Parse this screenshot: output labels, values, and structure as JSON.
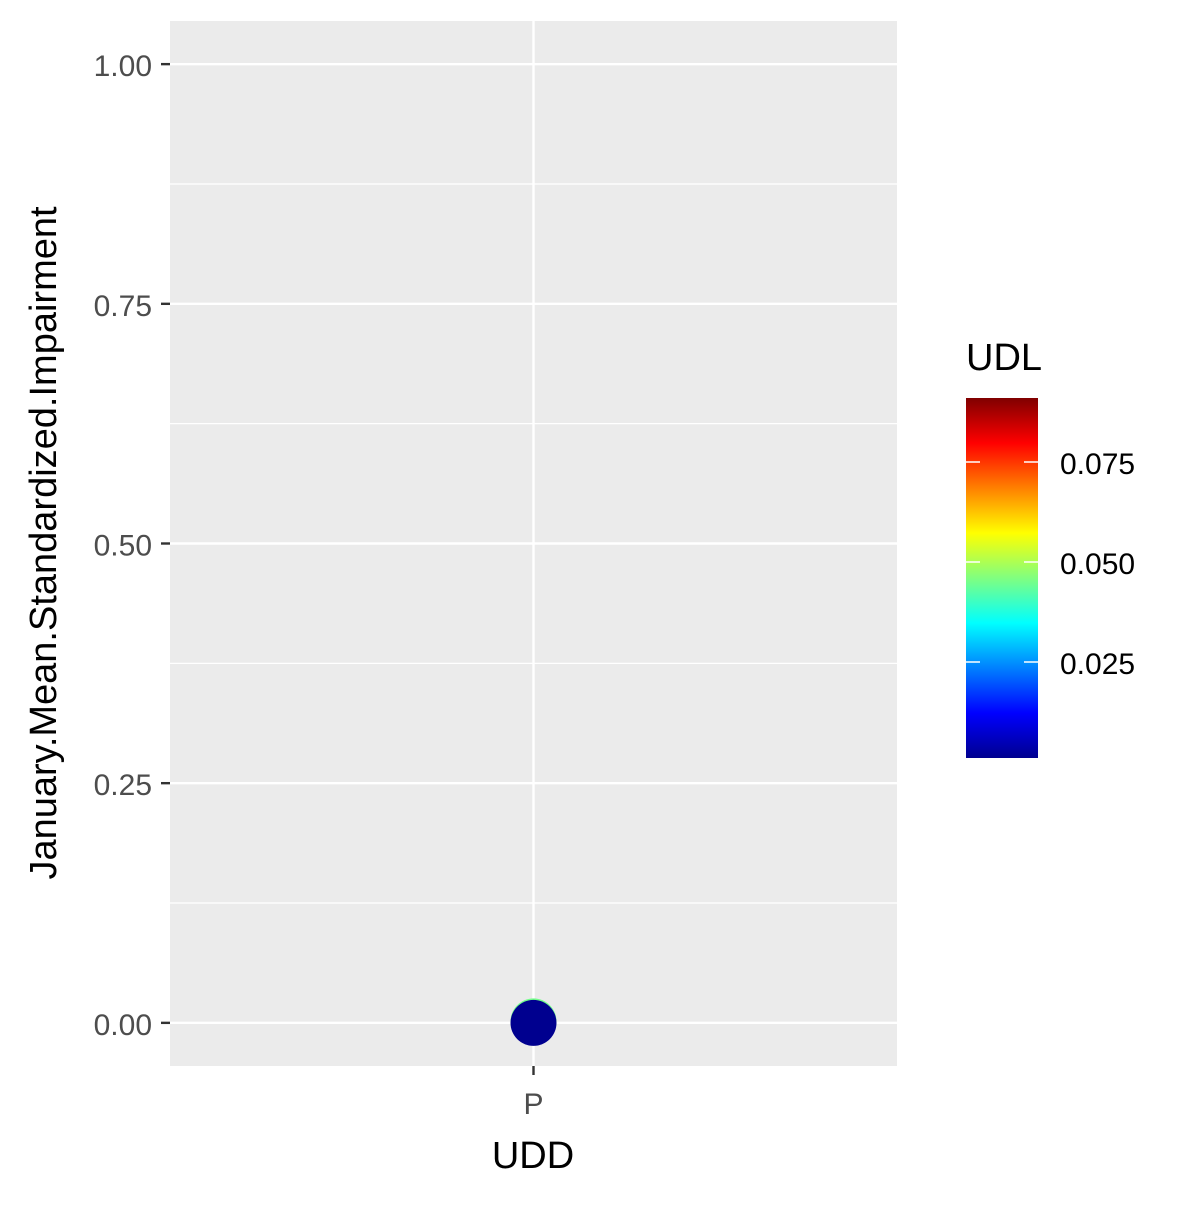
{
  "chart_data": {
    "type": "scatter",
    "xlabel": "UDD",
    "ylabel": "January.Mean.Standardized.Impairment",
    "categories": [
      "P"
    ],
    "ylim": [
      -0.045,
      1.045
    ],
    "y_ticks": [
      0,
      0.25,
      0.5,
      0.75,
      1
    ],
    "y_tick_labels": [
      "0.00",
      "0.25",
      "0.50",
      "0.75",
      "1.00"
    ],
    "grid": true,
    "points": [
      {
        "x": "P",
        "y": 0.0,
        "udl": 0.045
      },
      {
        "x": "P",
        "y": 0.0,
        "udl": 0.001
      }
    ],
    "legend": {
      "title": "UDL",
      "placement": "right",
      "range": [
        0.001,
        0.091
      ],
      "ticks": [
        0.025,
        0.05,
        0.075
      ],
      "tick_labels": [
        "0.025",
        "0.050",
        "0.075"
      ]
    },
    "colors": {
      "panel_bg": "#EBEBEB",
      "grid": "#FFFFFF",
      "axis_text": "#4D4D4D",
      "axis_title": "#000000",
      "tick": "#333333",
      "colormap": [
        "#00008F",
        "#0000FF",
        "#0080FF",
        "#00FFFF",
        "#80FF80",
        "#FFFF00",
        "#FF8000",
        "#FF0000",
        "#800000"
      ]
    }
  }
}
